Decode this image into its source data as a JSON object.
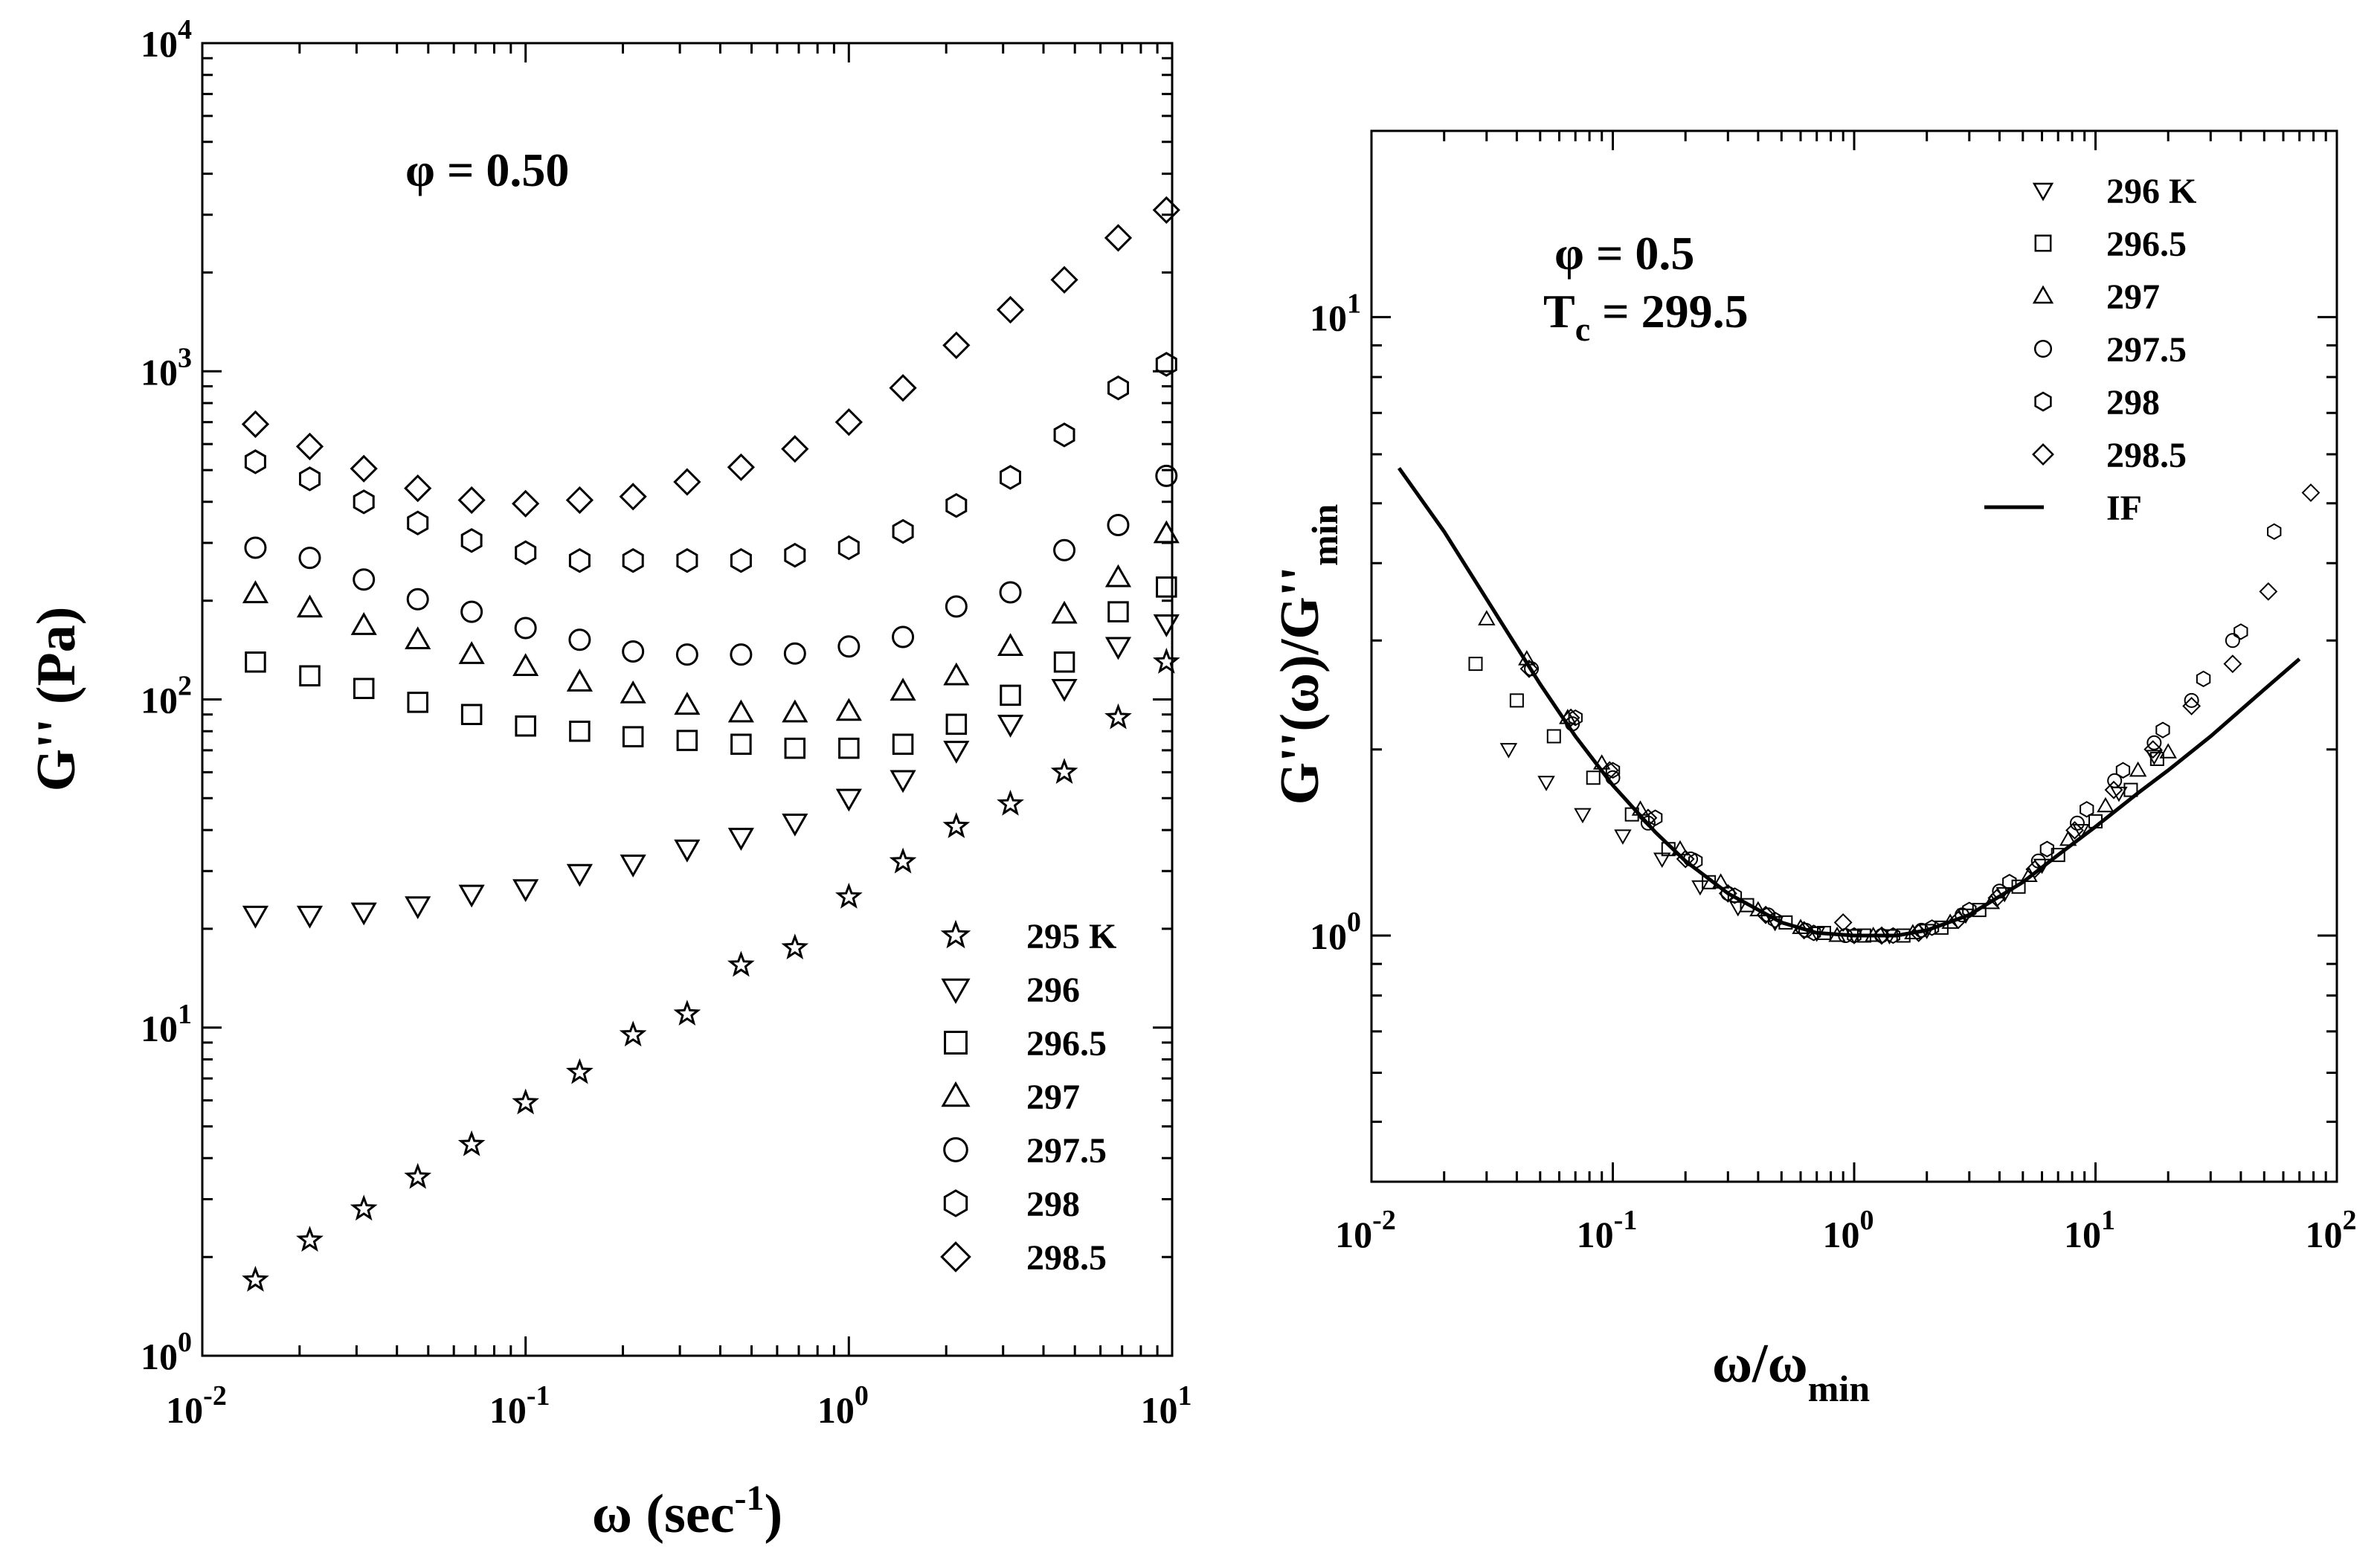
{
  "chart_data": [
    {
      "type": "scatter",
      "title": "",
      "annotation": "φ = 0.50",
      "xlabel": "ω (sec⁻¹)",
      "ylabel": "G'' (Pa)",
      "xscale": "log",
      "yscale": "log",
      "xlim": [
        0.01,
        10
      ],
      "ylim": [
        1,
        10000
      ],
      "xticks": [
        {
          "base": "10",
          "exp": "-2"
        },
        {
          "base": "10",
          "exp": "-1"
        },
        {
          "base": "10",
          "exp": "0"
        },
        {
          "base": "10",
          "exp": "1"
        }
      ],
      "yticks": [
        {
          "base": "10",
          "exp": "0"
        },
        {
          "base": "10",
          "exp": "1"
        },
        {
          "base": "10",
          "exp": "2"
        },
        {
          "base": "10",
          "exp": "3"
        },
        {
          "base": "10",
          "exp": "4"
        }
      ],
      "legend_position": "bottom-right",
      "x": [
        0.0146,
        0.0215,
        0.0316,
        0.0464,
        0.0681,
        0.1,
        0.147,
        0.215,
        0.316,
        0.464,
        0.681,
        1.0,
        1.47,
        2.15,
        3.16,
        4.64,
        6.81,
        9.6
      ],
      "series": [
        {
          "name": "295 K",
          "marker": "star",
          "values": [
            1.7,
            2.25,
            2.8,
            3.5,
            4.4,
            5.9,
            7.3,
            9.5,
            11,
            15.5,
            17.5,
            25,
            32,
            41,
            48,
            60,
            88,
            130
          ]
        },
        {
          "name": "296",
          "marker": "triangle-down",
          "values": [
            22,
            22,
            22.5,
            23.5,
            25.5,
            26.5,
            29.5,
            31.5,
            35,
            38,
            42,
            50,
            57,
            70,
            84,
            108,
            145,
            170
          ]
        },
        {
          "name": "296.5",
          "marker": "square",
          "values": [
            130,
            118,
            108,
            98,
            90,
            83,
            80,
            77,
            75,
            73,
            71,
            71,
            73,
            84,
            103,
            130,
            185,
            220
          ]
        },
        {
          "name": "297",
          "marker": "triangle-up",
          "values": [
            210,
            190,
            168,
            152,
            137,
            126,
            113,
            104,
            96,
            91,
            91,
            92,
            106,
            118,
            145,
            182,
            235,
            320
          ]
        },
        {
          "name": "297.5",
          "marker": "circle",
          "values": [
            290,
            270,
            232,
            202,
            185,
            165,
            152,
            140,
            137,
            137,
            138,
            145,
            155,
            192,
            212,
            285,
            340,
            480
          ]
        },
        {
          "name": "298",
          "marker": "hexagon",
          "values": [
            530,
            470,
            400,
            345,
            305,
            280,
            265,
            265,
            265,
            265,
            275,
            290,
            325,
            390,
            475,
            640,
            890,
            1050
          ]
        },
        {
          "name": "298.5",
          "marker": "diamond",
          "values": [
            690,
            590,
            505,
            440,
            405,
            395,
            405,
            415,
            460,
            510,
            580,
            700,
            890,
            1200,
            1540,
            1900,
            2550,
            3100
          ]
        }
      ]
    },
    {
      "type": "scatter",
      "title": "",
      "annotation_line1": "φ = 0.5",
      "annotation_line2_main": "T",
      "annotation_line2_sub": "c",
      "annotation_line2_rest": " = 299.5",
      "xlabel_main": "ω/ω",
      "xlabel_sub": "min",
      "ylabel_main": "G''(ω)/G''",
      "ylabel_sub": "min",
      "xscale": "log",
      "yscale": "log",
      "xlim": [
        0.01,
        100
      ],
      "ylim": [
        0.4,
        20
      ],
      "xticks": [
        {
          "base": "10",
          "exp": "-2"
        },
        {
          "base": "10",
          "exp": "-1"
        },
        {
          "base": "10",
          "exp": "0"
        },
        {
          "base": "10",
          "exp": "1"
        },
        {
          "base": "10",
          "exp": "2"
        }
      ],
      "yticks": [
        {
          "base": "10",
          "exp": "0",
          "value": 1
        },
        {
          "base": "10",
          "exp": "1",
          "value": 10
        }
      ],
      "legend_position": "top-right",
      "series": [
        {
          "name": "296 K",
          "marker": "triangle-down",
          "points": [
            [
              0.037,
              2.0
            ],
            [
              0.053,
              1.77
            ],
            [
              0.075,
              1.57
            ],
            [
              0.11,
              1.45
            ],
            [
              0.16,
              1.33
            ],
            [
              0.23,
              1.2
            ],
            [
              0.33,
              1.11
            ],
            [
              0.47,
              1.05
            ],
            [
              0.7,
              1.01
            ],
            [
              1.0,
              1.0
            ],
            [
              1.4,
              1.0
            ],
            [
              2.0,
              1.02
            ],
            [
              2.9,
              1.08
            ],
            [
              4.2,
              1.17
            ],
            [
              6.0,
              1.3
            ],
            [
              8.7,
              1.48
            ],
            [
              12.5,
              1.7
            ],
            [
              17.5,
              1.95
            ]
          ]
        },
        {
          "name": "296.5",
          "marker": "square",
          "points": [
            [
              0.027,
              2.75
            ],
            [
              0.04,
              2.4
            ],
            [
              0.057,
              2.1
            ],
            [
              0.083,
              1.8
            ],
            [
              0.12,
              1.57
            ],
            [
              0.17,
              1.38
            ],
            [
              0.25,
              1.22
            ],
            [
              0.36,
              1.12
            ],
            [
              0.52,
              1.05
            ],
            [
              0.75,
              1.01
            ],
            [
              1.1,
              1.0
            ],
            [
              1.6,
              1.0
            ],
            [
              2.3,
              1.03
            ],
            [
              3.3,
              1.1
            ],
            [
              4.8,
              1.2
            ],
            [
              7.0,
              1.35
            ],
            [
              10.0,
              1.53
            ],
            [
              14.0,
              1.72
            ],
            [
              18.0,
              1.93
            ]
          ]
        },
        {
          "name": "297",
          "marker": "triangle-up",
          "points": [
            [
              0.03,
              3.25
            ],
            [
              0.044,
              2.8
            ],
            [
              0.065,
              2.25
            ],
            [
              0.09,
              1.9
            ],
            [
              0.13,
              1.6
            ],
            [
              0.19,
              1.38
            ],
            [
              0.28,
              1.22
            ],
            [
              0.4,
              1.1
            ],
            [
              0.6,
              1.03
            ],
            [
              0.85,
              1.0
            ],
            [
              1.2,
              1.0
            ],
            [
              1.75,
              1.01
            ],
            [
              2.5,
              1.05
            ],
            [
              3.7,
              1.13
            ],
            [
              5.3,
              1.25
            ],
            [
              7.7,
              1.43
            ],
            [
              11.0,
              1.62
            ],
            [
              15.0,
              1.85
            ],
            [
              20.0,
              1.98
            ]
          ]
        },
        {
          "name": "297.5",
          "marker": "circle",
          "points": [
            [
              0.046,
              2.7
            ],
            [
              0.068,
              2.2
            ],
            [
              0.1,
              1.8
            ],
            [
              0.14,
              1.52
            ],
            [
              0.21,
              1.33
            ],
            [
              0.3,
              1.17
            ],
            [
              0.44,
              1.08
            ],
            [
              0.63,
              1.02
            ],
            [
              0.92,
              1.0
            ],
            [
              1.3,
              1.0
            ],
            [
              1.9,
              1.02
            ],
            [
              2.8,
              1.08
            ],
            [
              4.0,
              1.18
            ],
            [
              5.8,
              1.32
            ],
            [
              8.4,
              1.52
            ],
            [
              12.0,
              1.78
            ],
            [
              17.5,
              2.05
            ],
            [
              25.0,
              2.4
            ],
            [
              37.0,
              3.0
            ]
          ]
        },
        {
          "name": "298",
          "marker": "hexagon",
          "points": [
            [
              0.07,
              2.25
            ],
            [
              0.1,
              1.85
            ],
            [
              0.15,
              1.55
            ],
            [
              0.22,
              1.32
            ],
            [
              0.32,
              1.16
            ],
            [
              0.47,
              1.06
            ],
            [
              0.68,
              1.01
            ],
            [
              1.0,
              1.0
            ],
            [
              1.45,
              1.0
            ],
            [
              2.1,
              1.03
            ],
            [
              3.0,
              1.1
            ],
            [
              4.4,
              1.22
            ],
            [
              6.3,
              1.38
            ],
            [
              9.2,
              1.6
            ],
            [
              13.0,
              1.85
            ],
            [
              19.0,
              2.15
            ],
            [
              28.0,
              2.6
            ],
            [
              40.0,
              3.1
            ],
            [
              55.0,
              4.5
            ]
          ]
        },
        {
          "name": "298.5",
          "marker": "diamond",
          "points": [
            [
              0.045,
              2.7
            ],
            [
              0.067,
              2.25
            ],
            [
              0.097,
              1.85
            ],
            [
              0.14,
              1.55
            ],
            [
              0.2,
              1.33
            ],
            [
              0.3,
              1.17
            ],
            [
              0.43,
              1.08
            ],
            [
              0.62,
              1.02
            ],
            [
              0.9,
              1.05
            ],
            [
              1.3,
              1.0
            ],
            [
              1.85,
              1.01
            ],
            [
              2.7,
              1.06
            ],
            [
              3.9,
              1.15
            ],
            [
              5.6,
              1.28
            ],
            [
              8.2,
              1.48
            ],
            [
              11.9,
              1.72
            ],
            [
              17.3,
              2.0
            ],
            [
              25.0,
              2.35
            ],
            [
              37.0,
              2.75
            ],
            [
              52.0,
              3.6
            ],
            [
              78.0,
              5.2
            ]
          ]
        }
      ],
      "fit": {
        "name": "IF",
        "style": "solid-line",
        "points": [
          [
            0.013,
            5.7
          ],
          [
            0.02,
            4.5
          ],
          [
            0.03,
            3.5
          ],
          [
            0.05,
            2.55
          ],
          [
            0.07,
            2.1
          ],
          [
            0.1,
            1.75
          ],
          [
            0.15,
            1.47
          ],
          [
            0.2,
            1.32
          ],
          [
            0.3,
            1.17
          ],
          [
            0.5,
            1.05
          ],
          [
            0.7,
            1.01
          ],
          [
            1.0,
            1.0
          ],
          [
            1.5,
            1.0
          ],
          [
            2.0,
            1.02
          ],
          [
            3.0,
            1.08
          ],
          [
            5.0,
            1.22
          ],
          [
            7.0,
            1.35
          ],
          [
            10.0,
            1.5
          ],
          [
            15.0,
            1.7
          ],
          [
            20.0,
            1.85
          ],
          [
            30.0,
            2.1
          ],
          [
            50.0,
            2.5
          ],
          [
            70.0,
            2.8
          ]
        ]
      }
    }
  ]
}
